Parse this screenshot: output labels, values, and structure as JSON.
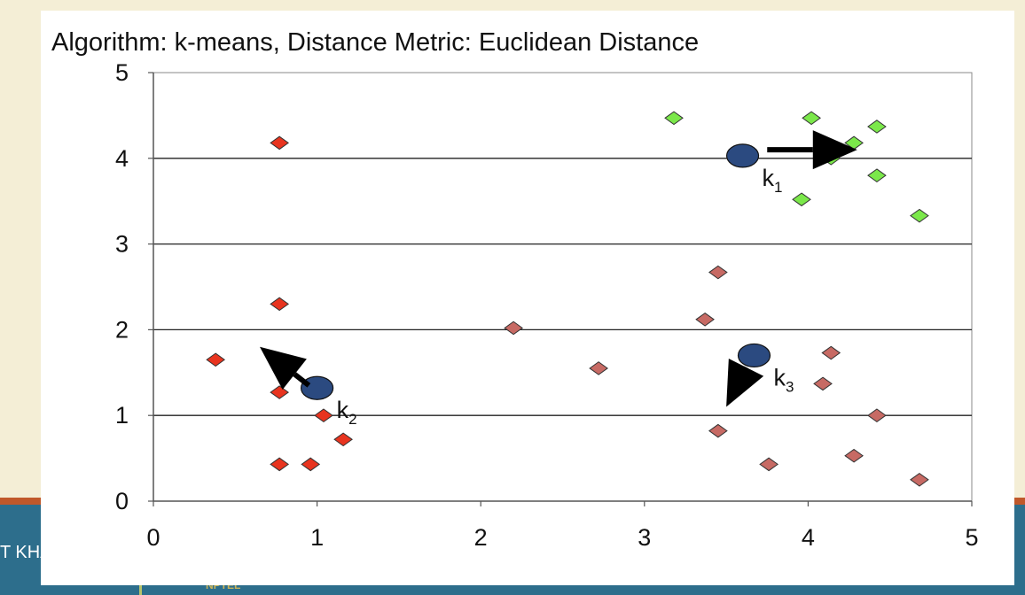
{
  "slide": {
    "title": "Algorithm: k-means, Distance Metric: Euclidean Distance",
    "bottom_left_text": "T KHA",
    "bottom_small_text": "NPTEL"
  },
  "chart_data": {
    "type": "scatter",
    "title": "",
    "xlabel": "",
    "ylabel": "",
    "xlim": [
      0,
      5
    ],
    "ylim": [
      0,
      5
    ],
    "xticks": [
      "0",
      "1",
      "2",
      "3",
      "4",
      "5"
    ],
    "yticks": [
      "0",
      "1",
      "2",
      "3",
      "4",
      "5"
    ],
    "grid": "horizontal",
    "colors": {
      "red": "#e8341f",
      "brown": "#c76a64",
      "green": "#7be84a",
      "centroid": "#2b4a80"
    },
    "series": [
      {
        "color": "red",
        "points": [
          [
            0.38,
            1.65
          ],
          [
            0.77,
            4.18
          ],
          [
            0.77,
            2.3
          ],
          [
            0.77,
            1.27
          ],
          [
            0.77,
            0.43
          ],
          [
            0.96,
            0.43
          ],
          [
            1.04,
            1.0
          ],
          [
            1.16,
            0.72
          ]
        ]
      },
      {
        "color": "brown",
        "points": [
          [
            2.2,
            2.02
          ],
          [
            2.72,
            1.55
          ],
          [
            3.37,
            2.12
          ],
          [
            3.45,
            2.67
          ],
          [
            3.45,
            0.82
          ],
          [
            3.76,
            0.43
          ],
          [
            4.09,
            1.37
          ],
          [
            4.14,
            1.73
          ],
          [
            4.28,
            0.53
          ],
          [
            4.42,
            1.0
          ],
          [
            4.68,
            0.25
          ]
        ]
      },
      {
        "color": "green",
        "points": [
          [
            3.18,
            4.47
          ],
          [
            4.02,
            4.47
          ],
          [
            4.14,
            4.0
          ],
          [
            4.28,
            4.18
          ],
          [
            4.42,
            4.37
          ],
          [
            4.42,
            3.8
          ],
          [
            3.96,
            3.52
          ],
          [
            4.68,
            3.33
          ]
        ]
      }
    ],
    "centroids": [
      {
        "label": "k",
        "sub": "1",
        "x": 3.6,
        "y": 4.03
      },
      {
        "label": "k",
        "sub": "2",
        "x": 1.0,
        "y": 1.32
      },
      {
        "label": "k",
        "sub": "3",
        "x": 3.67,
        "y": 1.7
      }
    ],
    "arrows": [
      {
        "from": [
          3.75,
          4.1
        ],
        "to": [
          4.3,
          4.1
        ]
      },
      {
        "from": [
          0.95,
          1.35
        ],
        "to": [
          0.65,
          1.8
        ]
      },
      {
        "from": [
          3.6,
          1.48
        ],
        "to": [
          3.5,
          1.1
        ]
      }
    ]
  }
}
